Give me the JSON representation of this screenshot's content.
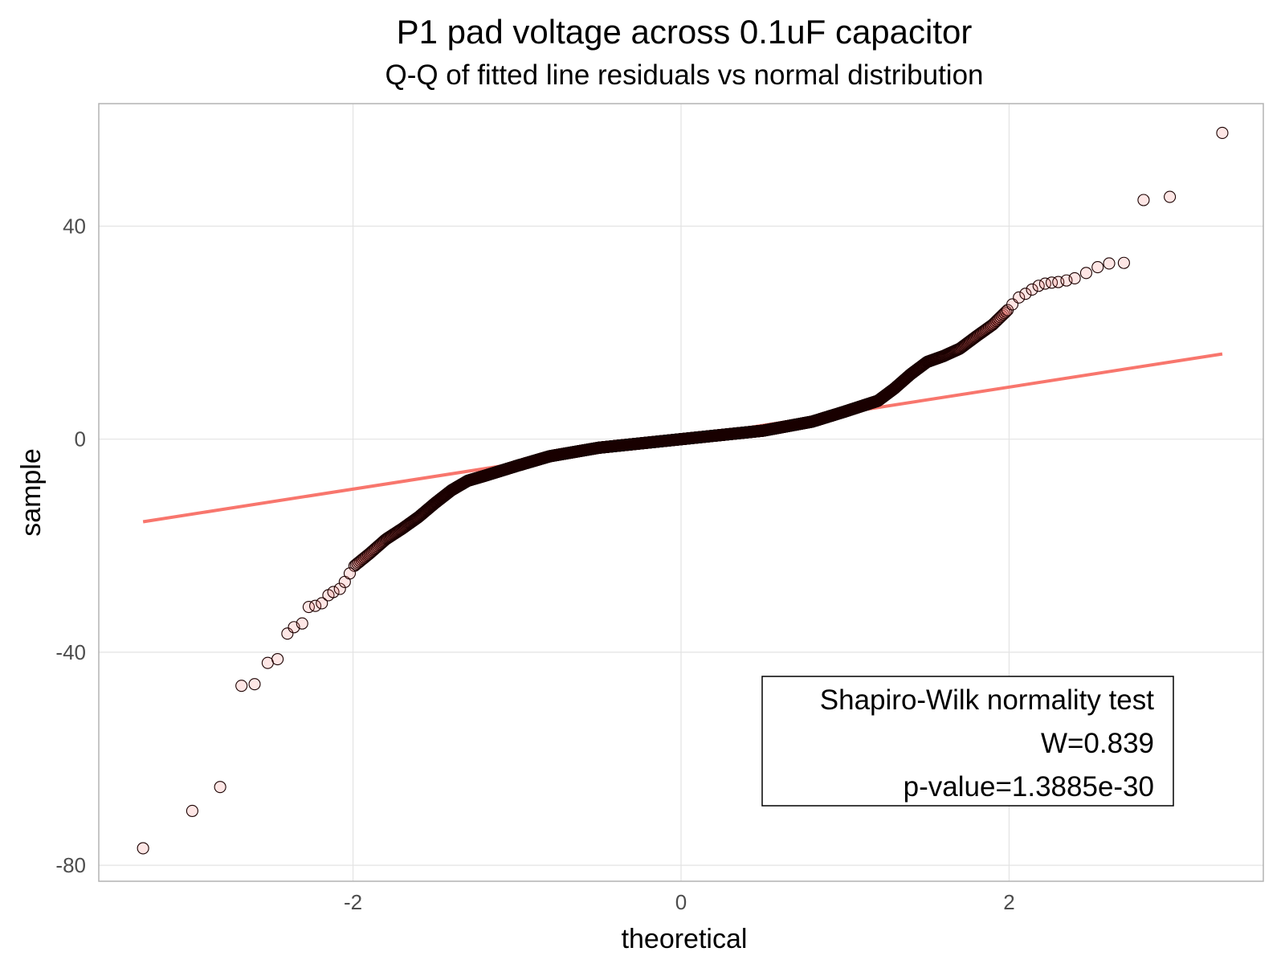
{
  "chart_data": {
    "type": "scatter",
    "title": "P1 pad voltage across 0.1uF capacitor",
    "subtitle": "Q-Q of fitted line residuals vs normal distribution",
    "xlabel": "theoretical",
    "ylabel": "sample",
    "xlim": [
      -3.55,
      3.55
    ],
    "ylim": [
      -83,
      63
    ],
    "x_ticks": [
      -2,
      0,
      2
    ],
    "x_tick_labels": [
      "-2",
      "0",
      "2"
    ],
    "y_ticks": [
      -80,
      -40,
      0,
      40
    ],
    "y_tick_labels": [
      "-80",
      "-40",
      "0",
      "40"
    ],
    "grid": true,
    "point_color": "#f8766d",
    "point_edge_color": "#1a0000",
    "line_color": "#f8766d",
    "reference_line": {
      "x": [
        -3.28,
        3.3
      ],
      "y": [
        -15.5,
        16.0
      ]
    },
    "outlier_points": [
      {
        "x": -3.28,
        "y": -76.8
      },
      {
        "x": -2.98,
        "y": -69.8
      },
      {
        "x": -2.81,
        "y": -65.3
      },
      {
        "x": -2.68,
        "y": -46.3
      },
      {
        "x": -2.6,
        "y": -46.0
      },
      {
        "x": -2.52,
        "y": -42.0
      },
      {
        "x": -2.46,
        "y": -41.3
      },
      {
        "x": -2.4,
        "y": -36.5
      },
      {
        "x": -2.36,
        "y": -35.3
      },
      {
        "x": -2.31,
        "y": -34.6
      },
      {
        "x": -2.27,
        "y": -31.5
      },
      {
        "x": -2.23,
        "y": -31.3
      },
      {
        "x": -2.19,
        "y": -30.8
      },
      {
        "x": -2.15,
        "y": -29.3
      },
      {
        "x": -2.12,
        "y": -28.7
      },
      {
        "x": -2.08,
        "y": -28.1
      },
      {
        "x": -2.05,
        "y": -26.8
      },
      {
        "x": -2.02,
        "y": -25.2
      },
      {
        "x": 2.02,
        "y": 25.3
      },
      {
        "x": 2.06,
        "y": 26.6
      },
      {
        "x": 2.1,
        "y": 27.3
      },
      {
        "x": 2.14,
        "y": 28.1
      },
      {
        "x": 2.18,
        "y": 28.8
      },
      {
        "x": 2.22,
        "y": 29.2
      },
      {
        "x": 2.26,
        "y": 29.4
      },
      {
        "x": 2.3,
        "y": 29.5
      },
      {
        "x": 2.35,
        "y": 29.8
      },
      {
        "x": 2.4,
        "y": 30.2
      },
      {
        "x": 2.47,
        "y": 31.2
      },
      {
        "x": 2.54,
        "y": 32.3
      },
      {
        "x": 2.61,
        "y": 33.0
      },
      {
        "x": 2.7,
        "y": 33.1
      },
      {
        "x": 2.82,
        "y": 44.9
      },
      {
        "x": 2.98,
        "y": 45.5
      },
      {
        "x": 3.3,
        "y": 57.5
      }
    ],
    "qq_shape": {
      "n_dense_points": 2000,
      "anchors_x": [
        -2.0,
        -1.9,
        -1.8,
        -1.7,
        -1.6,
        -1.5,
        -1.4,
        -1.3,
        -1.2,
        -1.0,
        -0.8,
        -0.5,
        0.0,
        0.5,
        0.8,
        1.0,
        1.2,
        1.3,
        1.4,
        1.5,
        1.6,
        1.7,
        1.8,
        1.9,
        2.0
      ],
      "anchors_y": [
        -24.0,
        -21.5,
        -18.8,
        -16.8,
        -14.6,
        -12.0,
        -9.6,
        -7.8,
        -6.9,
        -5.0,
        -3.2,
        -1.6,
        0.0,
        1.6,
        3.3,
        5.2,
        7.2,
        9.5,
        12.2,
        14.5,
        15.6,
        17.0,
        19.3,
        21.5,
        24.5
      ]
    },
    "annotation": {
      "lines": [
        "Shapiro-Wilk normality test",
        "W=0.839",
        "p-value=1.3885e-30"
      ],
      "position": "bottom-right"
    }
  }
}
